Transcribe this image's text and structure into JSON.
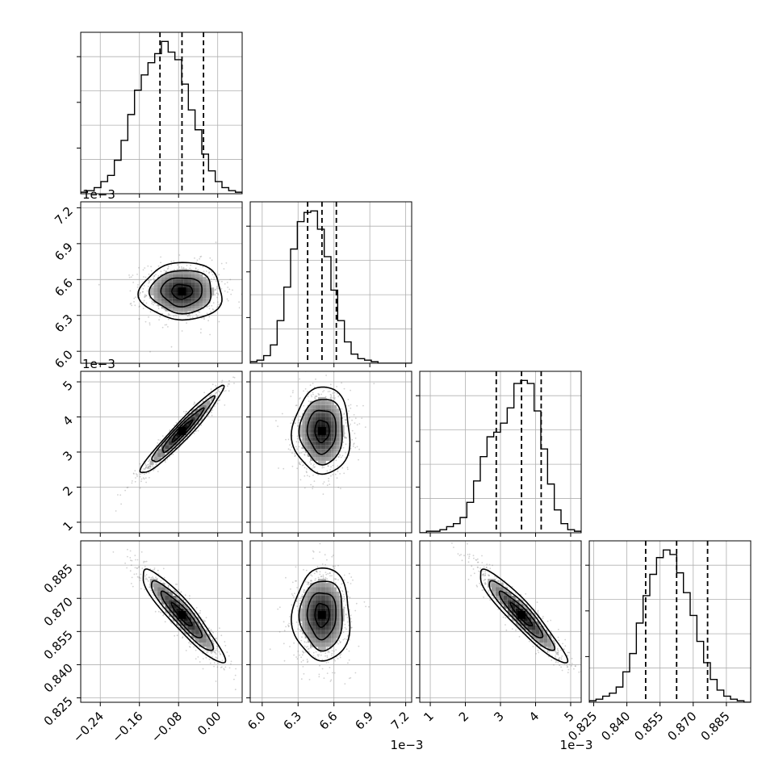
{
  "chart_data": {
    "type": "corner",
    "grid": true,
    "parameters": [
      {
        "range": [
          -0.28,
          0.05
        ],
        "ticks": [
          -0.24,
          -0.16,
          -0.08,
          0.0
        ],
        "tick_labels": [
          "−0.24",
          "−0.16",
          "−0.08",
          "0.00"
        ],
        "offset_text": "",
        "mean": -0.073,
        "sd": 0.042,
        "quantiles": [
          -0.118,
          -0.073,
          -0.029
        ],
        "hist": [
          0.01,
          0.02,
          0.04,
          0.08,
          0.12,
          0.22,
          0.35,
          0.52,
          0.68,
          0.78,
          0.86,
          0.92,
          1.0,
          0.93,
          0.88,
          0.72,
          0.55,
          0.42,
          0.26,
          0.15,
          0.08,
          0.04,
          0.02,
          0.01
        ]
      },
      {
        "range": [
          5.9,
          7.25
        ],
        "ticks": [
          6.0,
          6.3,
          6.6,
          6.9,
          7.2
        ],
        "tick_labels": [
          "6.0",
          "6.3",
          "6.6",
          "6.9",
          "7.2"
        ],
        "offset_text": "1e−3",
        "mean": 6.5,
        "sd": 0.12,
        "quantiles": [
          6.38,
          6.5,
          6.62
        ],
        "hist": [
          0.01,
          0.02,
          0.05,
          0.12,
          0.28,
          0.5,
          0.75,
          0.93,
          0.99,
          1.0,
          0.88,
          0.7,
          0.48,
          0.28,
          0.14,
          0.06,
          0.03,
          0.02,
          0.01,
          0.0,
          0.0,
          0.0,
          0.0,
          0.0
        ]
      },
      {
        "range": [
          0.7,
          5.3
        ],
        "ticks": [
          1,
          2,
          3,
          4,
          5
        ],
        "tick_labels": [
          "1",
          "2",
          "3",
          "4",
          "5"
        ],
        "offset_text": "1e−3",
        "mean": 3.6,
        "sd": 0.62,
        "quantiles": [
          2.88,
          3.6,
          4.16
        ],
        "hist": [
          0.0,
          0.01,
          0.01,
          0.02,
          0.04,
          0.06,
          0.1,
          0.2,
          0.34,
          0.5,
          0.63,
          0.66,
          0.72,
          0.82,
          0.98,
          1.0,
          0.98,
          0.8,
          0.55,
          0.32,
          0.15,
          0.06,
          0.02,
          0.01
        ]
      },
      {
        "range": [
          0.823,
          0.896
        ],
        "ticks": [
          0.825,
          0.84,
          0.855,
          0.87,
          0.885
        ],
        "tick_labels": [
          "0.825",
          "0.840",
          "0.855",
          "0.870",
          "0.885"
        ],
        "offset_text": "",
        "mean": 0.8625,
        "sd": 0.0105,
        "quantiles": [
          0.8485,
          0.8625,
          0.8765
        ],
        "hist": [
          0.01,
          0.02,
          0.04,
          0.06,
          0.1,
          0.2,
          0.32,
          0.52,
          0.7,
          0.84,
          0.95,
          1.0,
          0.97,
          0.85,
          0.72,
          0.57,
          0.4,
          0.26,
          0.15,
          0.08,
          0.04,
          0.02,
          0.01,
          0.0
        ]
      }
    ],
    "correlations": {
      "1-0": 0.0,
      "2-0": 0.96,
      "2-1": 0.0,
      "3-0": -0.92,
      "3-1": 0.0,
      "3-2": -0.93
    },
    "contour_levels_sigma": [
      0.5,
      1.0,
      1.5,
      2.0
    ],
    "colors": {
      "ink": "#000000",
      "grid": "#b0b0b0",
      "points": "#7a7a7a"
    }
  }
}
